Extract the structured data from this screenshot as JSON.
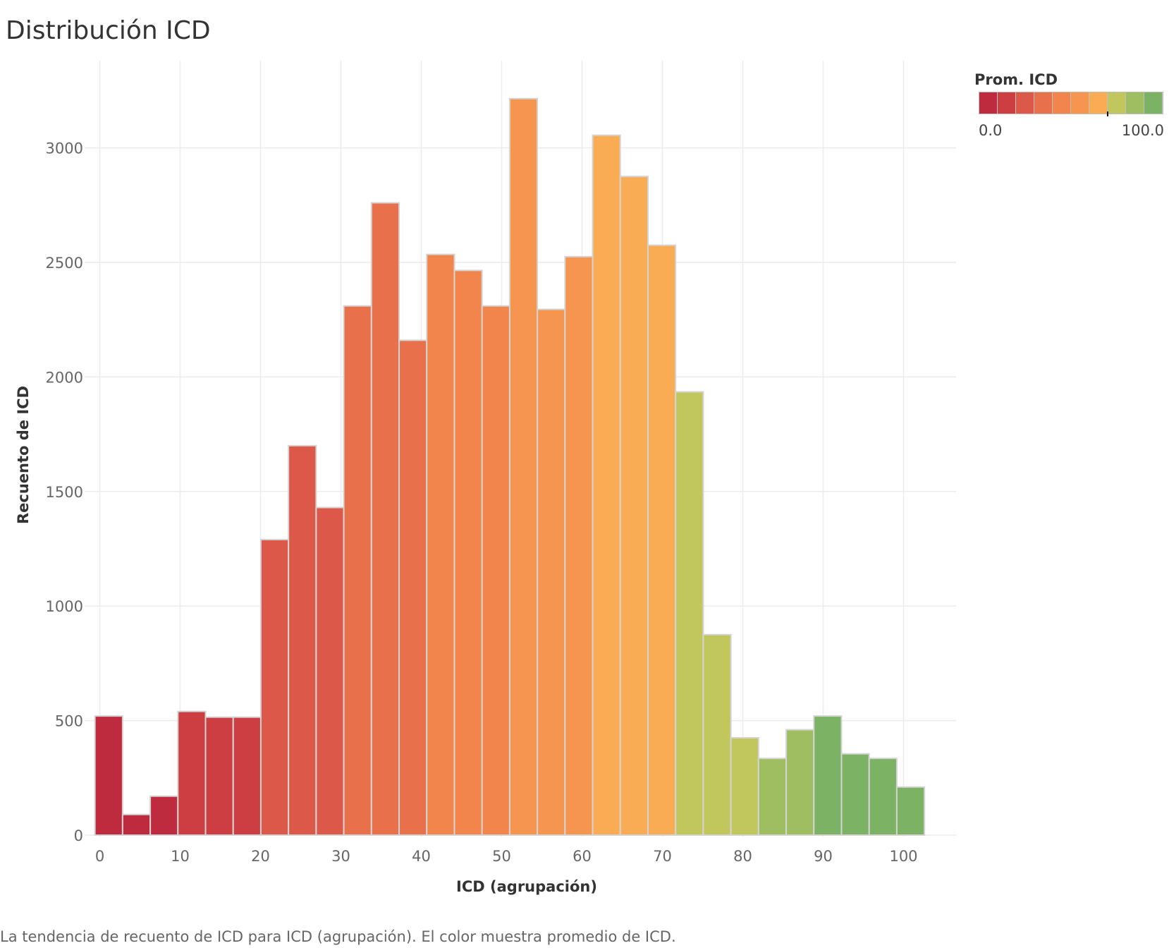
{
  "chart_data": {
    "type": "bar",
    "title": "Distribución ICD",
    "xlabel": "ICD (agrupación)",
    "ylabel": "Recuento de ICD",
    "caption": "La tendencia de recuento de ICD para ICD (agrupación). El color muestra promedio de ICD.",
    "bin_width": 3.44,
    "x_ticks": [
      "0",
      "10",
      "20",
      "30",
      "40",
      "50",
      "60",
      "70",
      "80",
      "90",
      "100"
    ],
    "y_ticks": [
      "0",
      "500",
      "1000",
      "1500",
      "2000",
      "2500",
      "3000"
    ],
    "xlim": [
      -0.6,
      106.5
    ],
    "ylim": [
      -50,
      3390
    ],
    "grid": true,
    "bins": [
      {
        "x0": -0.6,
        "x1": 2.84,
        "value": 520,
        "color": "#be2a3e"
      },
      {
        "x0": 2.84,
        "x1": 6.28,
        "value": 90,
        "color": "#be2a3e"
      },
      {
        "x0": 6.28,
        "x1": 9.72,
        "value": 170,
        "color": "#be2a3e"
      },
      {
        "x0": 9.72,
        "x1": 13.16,
        "value": 540,
        "color": "#cd3e43"
      },
      {
        "x0": 13.16,
        "x1": 16.6,
        "value": 515,
        "color": "#cd3e43"
      },
      {
        "x0": 16.6,
        "x1": 20.04,
        "value": 515,
        "color": "#cd3e43"
      },
      {
        "x0": 20.04,
        "x1": 23.48,
        "value": 1290,
        "color": "#dc5848"
      },
      {
        "x0": 23.48,
        "x1": 26.92,
        "value": 1700,
        "color": "#dc5848"
      },
      {
        "x0": 26.92,
        "x1": 30.36,
        "value": 1430,
        "color": "#dc5848"
      },
      {
        "x0": 30.36,
        "x1": 33.8,
        "value": 2310,
        "color": "#e8704a"
      },
      {
        "x0": 33.8,
        "x1": 37.24,
        "value": 2760,
        "color": "#e8704a"
      },
      {
        "x0": 37.24,
        "x1": 40.68,
        "value": 2160,
        "color": "#e8704a"
      },
      {
        "x0": 40.68,
        "x1": 44.12,
        "value": 2535,
        "color": "#f2854b"
      },
      {
        "x0": 44.12,
        "x1": 47.56,
        "value": 2465,
        "color": "#f2854b"
      },
      {
        "x0": 47.56,
        "x1": 51.0,
        "value": 2310,
        "color": "#f2854b"
      },
      {
        "x0": 51.0,
        "x1": 54.44,
        "value": 3215,
        "color": "#f69550"
      },
      {
        "x0": 54.44,
        "x1": 57.88,
        "value": 2295,
        "color": "#f69550"
      },
      {
        "x0": 57.88,
        "x1": 61.32,
        "value": 2525,
        "color": "#f69550"
      },
      {
        "x0": 61.32,
        "x1": 64.76,
        "value": 3055,
        "color": "#faac55"
      },
      {
        "x0": 64.76,
        "x1": 68.2,
        "value": 2875,
        "color": "#faac55"
      },
      {
        "x0": 68.2,
        "x1": 71.64,
        "value": 2575,
        "color": "#faac55"
      },
      {
        "x0": 71.64,
        "x1": 75.08,
        "value": 1935,
        "color": "#c1c75d"
      },
      {
        "x0": 75.08,
        "x1": 78.52,
        "value": 875,
        "color": "#c1c75d"
      },
      {
        "x0": 78.52,
        "x1": 81.96,
        "value": 425,
        "color": "#c1c75d"
      },
      {
        "x0": 81.96,
        "x1": 85.4,
        "value": 335,
        "color": "#9fbd61"
      },
      {
        "x0": 85.4,
        "x1": 88.84,
        "value": 460,
        "color": "#9fbd61"
      },
      {
        "x0": 88.84,
        "x1": 92.28,
        "value": 520,
        "color": "#7cb263"
      },
      {
        "x0": 92.28,
        "x1": 95.72,
        "value": 355,
        "color": "#7cb263"
      },
      {
        "x0": 95.72,
        "x1": 99.16,
        "value": 335,
        "color": "#7cb263"
      },
      {
        "x0": 99.16,
        "x1": 102.6,
        "value": 210,
        "color": "#7cb263"
      }
    ],
    "legend": {
      "title": "Prom. ICD",
      "placement": "top-right",
      "min_label": "0.0",
      "max_label": "100.0",
      "colors": [
        "#be2a3e",
        "#cd3e43",
        "#dc5848",
        "#e8704a",
        "#f2854b",
        "#f69550",
        "#faac55",
        "#c1c75d",
        "#9fbd61",
        "#7cb263"
      ],
      "marker_value": 70
    }
  }
}
